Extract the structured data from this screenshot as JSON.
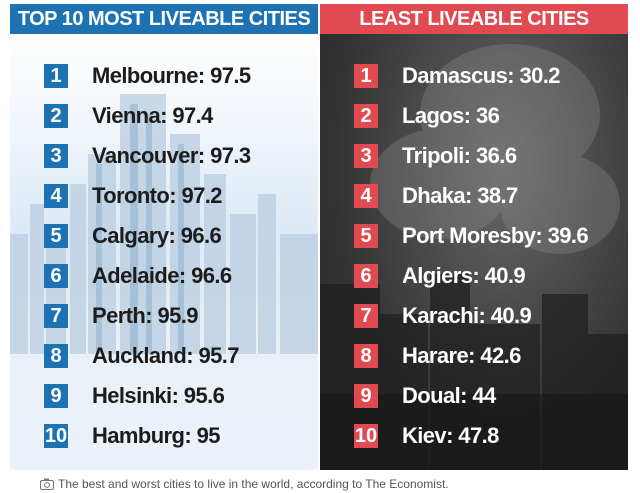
{
  "left_panel": {
    "title": "TOP 10 MOST LIVEABLE CITIES",
    "accent": "#1c72b3",
    "items": [
      {
        "rank": "1",
        "text": "Melbourne: 97.5"
      },
      {
        "rank": "2",
        "text": "Vienna: 97.4"
      },
      {
        "rank": "3",
        "text": "Vancouver: 97.3"
      },
      {
        "rank": "4",
        "text": "Toronto: 97.2"
      },
      {
        "rank": "5",
        "text": "Calgary: 96.6"
      },
      {
        "rank": "6",
        "text": "Adelaide: 96.6"
      },
      {
        "rank": "7",
        "text": "Perth: 95.9"
      },
      {
        "rank": "8",
        "text": "Auckland: 95.7"
      },
      {
        "rank": "9",
        "text": "Helsinki: 95.6"
      },
      {
        "rank": "10",
        "text": "Hamburg: 95"
      }
    ]
  },
  "right_panel": {
    "title": "LEAST LIVEABLE CITIES",
    "accent": "#e04a50",
    "items": [
      {
        "rank": "1",
        "text": "Damascus: 30.2"
      },
      {
        "rank": "2",
        "text": "Lagos: 36"
      },
      {
        "rank": "3",
        "text": "Tripoli: 36.6"
      },
      {
        "rank": "4",
        "text": "Dhaka: 38.7"
      },
      {
        "rank": "5",
        "text": "Port Moresby: 39.6"
      },
      {
        "rank": "6",
        "text": "Algiers: 40.9"
      },
      {
        "rank": "7",
        "text": "Karachi: 40.9"
      },
      {
        "rank": "8",
        "text": "Harare: 42.6"
      },
      {
        "rank": "9",
        "text": "Doual: 44"
      },
      {
        "rank": "10",
        "text": "Kiev: 47.8"
      }
    ]
  },
  "caption": {
    "icon": "camera-icon",
    "text": "The best and worst cities to live in the world, according to The Economist."
  }
}
